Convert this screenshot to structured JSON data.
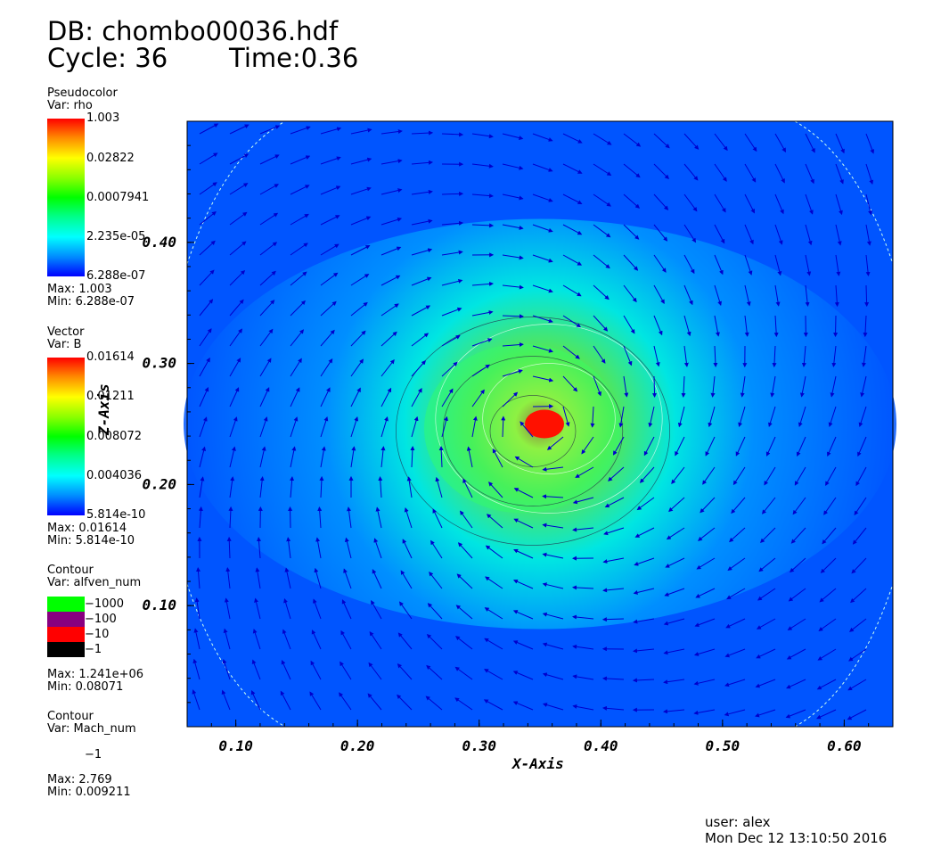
{
  "header": {
    "db": "DB: chombo00036.hdf",
    "cycle": "Cycle: 36",
    "time": "Time:0.36"
  },
  "legend_rho": {
    "kind": "Pseudocolor",
    "var": "Var: rho",
    "labels": [
      "1.003",
      "0.02822",
      "0.0007941",
      "2.235e-05",
      "6.288e-07"
    ],
    "max": "Max:  1.003",
    "min": "Min:  6.288e-07"
  },
  "legend_B": {
    "kind": "Vector",
    "var": "Var: B",
    "labels": [
      "0.01614",
      "0.01211",
      "0.008072",
      "0.004036",
      "5.814e-10"
    ],
    "max": "Max:  0.01614",
    "min": "Min:  5.814e-10"
  },
  "legend_alfven": {
    "kind": "Contour",
    "var": "Var: alfven_num",
    "levels": [
      {
        "label": "1000",
        "color": "#00ff00"
      },
      {
        "label": "100",
        "color": "#880080"
      },
      {
        "label": "10",
        "color": "#ff0000"
      },
      {
        "label": "1",
        "color": "#000000"
      }
    ],
    "max": "Max:  1.241e+06",
    "min": "Min:  0.08071"
  },
  "legend_mach": {
    "kind": "Contour",
    "var": "Var: Mach_num",
    "levels": [
      {
        "label": "1",
        "color": "#ffffff"
      }
    ],
    "max": "Max:  2.769",
    "min": "Min:  0.009211"
  },
  "footer": {
    "user": "user: alex",
    "date": "Mon Dec 12 13:10:50 2016"
  },
  "chart_data": {
    "type": "heatmap",
    "xlabel": "X-Axis",
    "ylabel": "Z-Axis",
    "xlim": [
      0.06,
      0.64
    ],
    "ylim": [
      0.0,
      0.5
    ],
    "xticks": [
      {
        "value": 0.1,
        "label": "0.10"
      },
      {
        "value": 0.2,
        "label": "0.20"
      },
      {
        "value": 0.3,
        "label": "0.30"
      },
      {
        "value": 0.4,
        "label": "0.40"
      },
      {
        "value": 0.5,
        "label": "0.50"
      },
      {
        "value": 0.6,
        "label": "0.60"
      }
    ],
    "yticks": [
      {
        "value": 0.1,
        "label": "0.10"
      },
      {
        "value": 0.2,
        "label": "0.20"
      },
      {
        "value": 0.3,
        "label": "0.30"
      },
      {
        "value": 0.4,
        "label": "0.40"
      }
    ],
    "density_center": [
      0.35,
      0.25
    ],
    "vector_field": "B",
    "colors": {
      "background": "#0055ff",
      "arrows": "#0000cc"
    }
  }
}
